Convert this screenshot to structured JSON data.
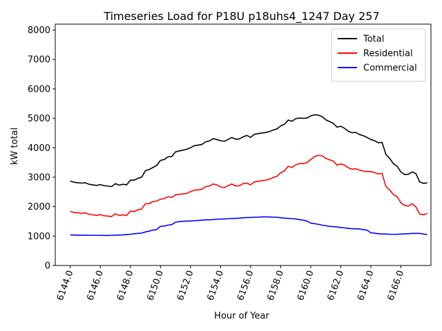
{
  "chart_data": {
    "type": "line",
    "title": "Timeseries Load for P18U p18uhs4_1247  Day 257",
    "xlabel": "Hour of Year",
    "ylabel": "kW total",
    "xlim": [
      6143.0,
      6168.0
    ],
    "ylim": [
      0,
      8200
    ],
    "xticks": [
      6144,
      6146,
      6148,
      6150,
      6152,
      6154,
      6156,
      6158,
      6160,
      6162,
      6164,
      6166
    ],
    "xtick_labels": [
      "6144.0",
      "6146.0",
      "6148.0",
      "6150.0",
      "6152.0",
      "6154.0",
      "6156.0",
      "6158.0",
      "6160.0",
      "6162.0",
      "6164.0",
      "6166.0"
    ],
    "yticks": [
      0,
      1000,
      2000,
      3000,
      4000,
      5000,
      6000,
      7000,
      8000
    ],
    "ytick_labels": [
      "0",
      "1000",
      "2000",
      "3000",
      "4000",
      "5000",
      "6000",
      "7000",
      "8000"
    ],
    "grid": false,
    "legend_position": "top-right",
    "x": [
      6144.0,
      6144.25,
      6144.5,
      6144.75,
      6145.0,
      6145.25,
      6145.5,
      6145.75,
      6146.0,
      6146.25,
      6146.5,
      6146.75,
      6147.0,
      6147.25,
      6147.5,
      6147.75,
      6148.0,
      6148.25,
      6148.5,
      6148.75,
      6149.0,
      6149.25,
      6149.5,
      6149.75,
      6150.0,
      6150.25,
      6150.5,
      6150.75,
      6151.0,
      6151.25,
      6151.5,
      6151.75,
      6152.0,
      6152.25,
      6152.5,
      6152.75,
      6153.0,
      6153.25,
      6153.5,
      6153.75,
      6154.0,
      6154.25,
      6154.5,
      6154.75,
      6155.0,
      6155.25,
      6155.5,
      6155.75,
      6156.0,
      6156.25,
      6156.5,
      6156.75,
      6157.0,
      6157.25,
      6157.5,
      6157.75,
      6158.0,
      6158.25,
      6158.5,
      6158.75,
      6159.0,
      6159.25,
      6159.5,
      6159.75,
      6160.0,
      6160.25,
      6160.5,
      6160.75,
      6161.0,
      6161.25,
      6161.5,
      6161.75,
      6162.0,
      6162.25,
      6162.5,
      6162.75,
      6163.0,
      6163.25,
      6163.5,
      6163.75,
      6164.0,
      6164.25,
      6164.5,
      6164.75,
      6165.0,
      6165.25,
      6165.5,
      6165.75,
      6166.0,
      6166.25,
      6166.5,
      6166.75,
      6167.0,
      6167.25,
      6167.5,
      6167.75
    ],
    "series": [
      {
        "name": "Total",
        "color": "#000000",
        "values": [
          2870,
          2830,
          2810,
          2800,
          2810,
          2760,
          2740,
          2720,
          2750,
          2710,
          2700,
          2680,
          2780,
          2730,
          2760,
          2740,
          2900,
          2900,
          2960,
          3000,
          3220,
          3260,
          3330,
          3400,
          3570,
          3600,
          3690,
          3700,
          3860,
          3890,
          3920,
          3950,
          4000,
          4070,
          4090,
          4110,
          4200,
          4230,
          4310,
          4280,
          4240,
          4220,
          4280,
          4350,
          4290,
          4300,
          4370,
          4420,
          4350,
          4460,
          4480,
          4500,
          4520,
          4550,
          4600,
          4640,
          4740,
          4800,
          4940,
          4900,
          4990,
          5010,
          5000,
          5010,
          5080,
          5120,
          5110,
          5060,
          4950,
          4890,
          4830,
          4700,
          4730,
          4660,
          4560,
          4510,
          4520,
          4450,
          4410,
          4350,
          4280,
          4240,
          4170,
          4180,
          3780,
          3640,
          3460,
          3370,
          3180,
          3090,
          3100,
          3180,
          3120,
          2840,
          2790,
          2810
        ]
      },
      {
        "name": "Residential",
        "color": "#ff0000",
        "values": [
          1840,
          1800,
          1790,
          1770,
          1790,
          1740,
          1720,
          1700,
          1730,
          1690,
          1680,
          1660,
          1760,
          1700,
          1720,
          1700,
          1850,
          1830,
          1890,
          1920,
          2100,
          2100,
          2170,
          2190,
          2250,
          2270,
          2340,
          2310,
          2400,
          2420,
          2430,
          2450,
          2510,
          2560,
          2570,
          2590,
          2680,
          2700,
          2770,
          2740,
          2670,
          2650,
          2710,
          2770,
          2700,
          2710,
          2780,
          2800,
          2740,
          2840,
          2860,
          2880,
          2900,
          2930,
          2990,
          3030,
          3150,
          3210,
          3370,
          3330,
          3420,
          3460,
          3470,
          3490,
          3600,
          3700,
          3740,
          3730,
          3640,
          3590,
          3550,
          3410,
          3450,
          3410,
          3320,
          3270,
          3290,
          3240,
          3210,
          3190,
          3190,
          3160,
          3110,
          3130,
          2690,
          2570,
          2410,
          2340,
          2130,
          2040,
          2020,
          2100,
          1990,
          1750,
          1720,
          1770
        ]
      },
      {
        "name": "Commercial",
        "color": "#0000ff",
        "values": [
          1040,
          1035,
          1030,
          1030,
          1030,
          1025,
          1025,
          1025,
          1025,
          1020,
          1020,
          1025,
          1030,
          1035,
          1040,
          1050,
          1060,
          1080,
          1090,
          1100,
          1140,
          1170,
          1200,
          1220,
          1330,
          1340,
          1370,
          1390,
          1470,
          1490,
          1500,
          1510,
          1510,
          1520,
          1530,
          1540,
          1550,
          1550,
          1560,
          1570,
          1580,
          1580,
          1590,
          1600,
          1600,
          1610,
          1620,
          1630,
          1630,
          1640,
          1640,
          1650,
          1650,
          1650,
          1640,
          1640,
          1620,
          1610,
          1600,
          1590,
          1580,
          1560,
          1540,
          1510,
          1440,
          1420,
          1400,
          1370,
          1350,
          1330,
          1320,
          1310,
          1290,
          1280,
          1260,
          1250,
          1250,
          1240,
          1220,
          1200,
          1110,
          1100,
          1080,
          1070,
          1070,
          1060,
          1060,
          1060,
          1070,
          1070,
          1080,
          1090,
          1090,
          1090,
          1070,
          1050
        ]
      }
    ]
  }
}
